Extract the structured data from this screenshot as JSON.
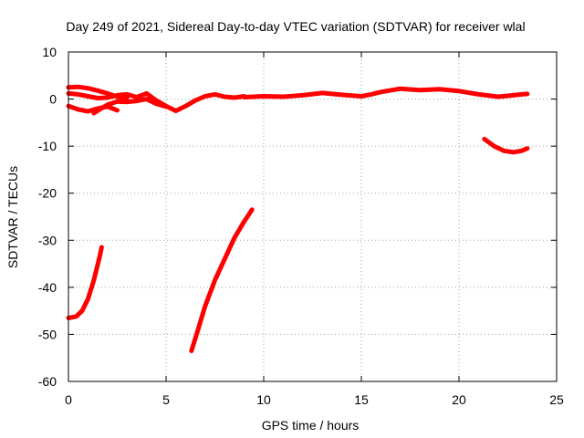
{
  "chart_data": {
    "type": "line",
    "title": "Day 249 of 2021, Sidereal Day-to-day VTEC variation (SDTVAR) for receiver wlal",
    "xlabel": "GPS time / hours",
    "ylabel": "SDTVAR / TECUs",
    "xlim": [
      0,
      25
    ],
    "ylim": [
      -60,
      10
    ],
    "xticks": [
      0,
      5,
      10,
      15,
      20,
      25
    ],
    "yticks": [
      -60,
      -50,
      -40,
      -30,
      -20,
      -10,
      0,
      10
    ],
    "grid": true,
    "legend": "none",
    "color": "#ff0000",
    "series": [
      {
        "name": "track-1",
        "points": [
          [
            0.0,
            2.5
          ],
          [
            0.5,
            2.6
          ],
          [
            1.0,
            2.3
          ],
          [
            1.5,
            1.8
          ],
          [
            2.0,
            1.2
          ],
          [
            2.5,
            0.5
          ],
          [
            3.0,
            0.2
          ]
        ]
      },
      {
        "name": "track-2",
        "points": [
          [
            0.0,
            1.2
          ],
          [
            0.5,
            1.0
          ],
          [
            1.0,
            0.6
          ],
          [
            1.5,
            0.2
          ],
          [
            2.0,
            0.3
          ],
          [
            2.5,
            0.8
          ],
          [
            3.0,
            1.0
          ],
          [
            3.5,
            0.4
          ],
          [
            4.0,
            1.2
          ],
          [
            4.5,
            -0.3
          ],
          [
            5.0,
            -1.5
          ],
          [
            5.5,
            -2.5
          ],
          [
            6.0,
            -1.5
          ],
          [
            6.5,
            -0.3
          ],
          [
            7.0,
            0.6
          ],
          [
            7.5,
            1.0
          ],
          [
            8.0,
            0.5
          ],
          [
            8.5,
            0.3
          ],
          [
            9.0,
            0.6
          ]
        ]
      },
      {
        "name": "track-3",
        "points": [
          [
            0.0,
            -1.5
          ],
          [
            0.5,
            -2.2
          ],
          [
            1.0,
            -2.6
          ],
          [
            1.5,
            -2.0
          ],
          [
            2.0,
            -1.6
          ],
          [
            2.5,
            -2.4
          ]
        ]
      },
      {
        "name": "track-4",
        "points": [
          [
            1.3,
            -3.0
          ],
          [
            1.6,
            -2.2
          ],
          [
            2.0,
            -1.2
          ],
          [
            2.5,
            -0.5
          ],
          [
            3.0,
            -0.6
          ],
          [
            3.5,
            -0.4
          ],
          [
            4.0,
            0.0
          ],
          [
            4.5,
            -1.0
          ],
          [
            5.0,
            -1.6
          ]
        ]
      },
      {
        "name": "track-5",
        "points": [
          [
            9.0,
            0.4
          ],
          [
            10.0,
            0.6
          ],
          [
            11.0,
            0.5
          ],
          [
            12.0,
            0.8
          ],
          [
            13.0,
            1.3
          ],
          [
            14.0,
            0.9
          ],
          [
            15.0,
            0.6
          ],
          [
            15.5,
            1.0
          ],
          [
            16.0,
            1.5
          ],
          [
            17.0,
            2.2
          ],
          [
            18.0,
            1.9
          ],
          [
            19.0,
            2.1
          ],
          [
            20.0,
            1.7
          ],
          [
            21.0,
            1.0
          ],
          [
            22.0,
            0.5
          ],
          [
            22.5,
            0.7
          ],
          [
            23.0,
            0.9
          ],
          [
            23.5,
            1.1
          ]
        ]
      },
      {
        "name": "track-6",
        "points": [
          [
            21.3,
            -8.5
          ],
          [
            21.8,
            -10.0
          ],
          [
            22.3,
            -11.0
          ],
          [
            22.8,
            -11.3
          ],
          [
            23.2,
            -11.0
          ],
          [
            23.5,
            -10.5
          ]
        ]
      },
      {
        "name": "track-7",
        "points": [
          [
            0.0,
            -46.5
          ],
          [
            0.4,
            -46.2
          ],
          [
            0.7,
            -45.0
          ],
          [
            1.0,
            -42.5
          ],
          [
            1.3,
            -38.5
          ],
          [
            1.6,
            -33.5
          ],
          [
            1.7,
            -31.5
          ]
        ]
      },
      {
        "name": "track-8",
        "points": [
          [
            6.3,
            -53.5
          ],
          [
            6.6,
            -49.5
          ],
          [
            7.0,
            -44.0
          ],
          [
            7.5,
            -38.5
          ],
          [
            8.0,
            -34.0
          ],
          [
            8.5,
            -29.5
          ],
          [
            9.0,
            -26.0
          ],
          [
            9.4,
            -23.5
          ]
        ]
      }
    ]
  }
}
